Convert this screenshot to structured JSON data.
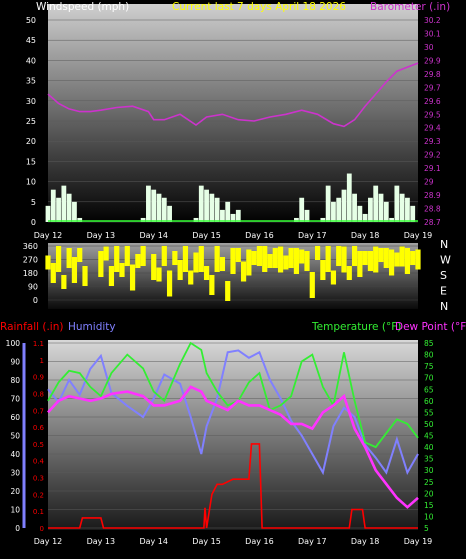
{
  "colors": {
    "white": "#ffffff",
    "wind": "#e6ffe6",
    "wind_line": "#33ff33",
    "barometer": "#cc33cc",
    "direction": "#ffff00",
    "rainfall": "#ff0000",
    "humidity": "#8080ff",
    "temperature": "#33ee33",
    "dew_point": "#ff33ff",
    "header_text": "#ffff00"
  },
  "chart_data": [
    {
      "type": "area",
      "title": "Current last 7 days April 18 2026",
      "left_label": "Windspeed (mph)",
      "right_label": "Barometer (.in)",
      "y_ticks": [
        "50",
        "45",
        "40",
        "35",
        "30",
        "25",
        "20",
        "15",
        "10",
        "5",
        "0"
      ],
      "right_ticks": [
        "30.2",
        "30.1",
        "30",
        "29.9",
        "29.8",
        "29.7",
        "29.6",
        "29.5",
        "29.4",
        "29.3",
        "29.2",
        "29.1",
        "29",
        "28.9",
        "28.8",
        "28.7"
      ],
      "x_ticks": [
        "Day 12",
        "Day 13",
        "Day 14",
        "Day 15",
        "Day 16",
        "Day 17",
        "Day 18",
        "Day 19"
      ],
      "ylim": [
        0,
        50
      ],
      "right_ylim": [
        28.7,
        30.2
      ],
      "series": [
        {
          "name": "Windspeed",
          "x": [
            12,
            12.1,
            12.2,
            12.3,
            12.4,
            12.5,
            12.6,
            12.7,
            12.8,
            12.9,
            13.0,
            13.1,
            13.2,
            13.3,
            13.4,
            13.5,
            13.6,
            13.7,
            13.8,
            13.9,
            14.0,
            14.1,
            14.2,
            14.3,
            14.4,
            14.5,
            14.6,
            14.7,
            14.8,
            14.9,
            15.0,
            15.1,
            15.2,
            15.3,
            15.4,
            15.5,
            15.6,
            15.7,
            15.8,
            15.9,
            16.0,
            16.1,
            16.2,
            16.3,
            16.4,
            16.5,
            16.6,
            16.7,
            16.8,
            16.9,
            17.0,
            17.1,
            17.2,
            17.3,
            17.4,
            17.5,
            17.6,
            17.7,
            17.8,
            17.9,
            18.0,
            18.1,
            18.2,
            18.3,
            18.4,
            18.5,
            18.6,
            18.7,
            18.8,
            18.9,
            19.0
          ],
          "values": [
            4,
            8,
            6,
            9,
            7,
            5,
            1,
            0,
            0,
            0,
            0,
            0,
            0,
            0,
            0,
            0,
            0,
            0,
            1,
            9,
            8,
            7,
            6,
            4,
            0,
            0,
            0,
            0,
            1,
            9,
            8,
            7,
            6,
            3,
            5,
            2,
            3,
            0,
            0,
            0,
            0,
            0,
            0,
            0,
            0,
            0,
            0,
            1,
            6,
            3,
            0,
            0,
            1,
            9,
            5,
            6,
            8,
            12,
            7,
            4,
            2,
            6,
            9,
            7,
            5,
            1,
            9,
            7,
            6,
            4,
            0
          ]
        },
        {
          "name": "Barometer",
          "x": [
            12,
            12.2,
            12.4,
            12.6,
            12.8,
            13.0,
            13.3,
            13.6,
            13.9,
            14.0,
            14.2,
            14.5,
            14.8,
            15.0,
            15.3,
            15.6,
            15.9,
            16.2,
            16.5,
            16.8,
            17.1,
            17.4,
            17.6,
            17.8,
            18.0,
            18.2,
            18.4,
            18.6,
            18.8,
            19.0
          ],
          "values": [
            29.65,
            29.58,
            29.54,
            29.52,
            29.52,
            29.53,
            29.55,
            29.56,
            29.52,
            29.46,
            29.46,
            29.5,
            29.42,
            29.48,
            29.5,
            29.46,
            29.45,
            29.48,
            29.5,
            29.53,
            29.5,
            29.43,
            29.41,
            29.46,
            29.56,
            29.65,
            29.74,
            29.82,
            29.85,
            29.88
          ]
        }
      ]
    },
    {
      "type": "scatter",
      "title": "",
      "y_ticks": [
        "360",
        "270",
        "180",
        "90",
        "0"
      ],
      "right_ticks": [
        "N",
        "W",
        "S",
        "E",
        "N"
      ],
      "ylim": [
        0,
        360
      ],
      "series": [
        {
          "name": "",
          "x": [
            12,
            12.1,
            12.2,
            12.3,
            12.4,
            12.5,
            12.6,
            12.7,
            13.0,
            13.1,
            13.2,
            13.3,
            13.4,
            13.5,
            13.6,
            13.7,
            13.8,
            14.0,
            14.1,
            14.2,
            14.3,
            14.4,
            14.5,
            14.6,
            14.7,
            14.8,
            14.9,
            15.0,
            15.1,
            15.2,
            15.3,
            15.4,
            15.5,
            15.6,
            15.7,
            15.8,
            15.9,
            16.0,
            16.1,
            16.2,
            16.3,
            16.4,
            16.5,
            16.6,
            16.7,
            16.8,
            16.9,
            17.0,
            17.1,
            17.2,
            17.3,
            17.4,
            17.5,
            17.6,
            17.7,
            17.8,
            17.9,
            18.0,
            18.1,
            18.2,
            18.3,
            18.4,
            18.5,
            18.6,
            18.7,
            18.8,
            18.9,
            19.0
          ],
          "values": [
            250,
            180,
            320,
            120,
            280,
            200,
            300,
            160,
            240,
            310,
            160,
            280,
            200,
            330,
            150,
            260,
            300,
            220,
            170,
            300,
            110,
            280,
            200,
            300,
            150,
            250,
            320,
            180,
            100,
            290,
            240,
            60,
            260,
            300,
            190,
            250,
            280,
            300,
            280,
            260,
            280,
            270,
            250,
            280,
            260,
            290,
            260,
            100,
            320,
            200,
            280,
            150,
            300,
            270,
            180,
            300,
            240,
            280,
            260,
            270,
            300,
            280,
            250,
            270,
            290,
            260,
            280,
            270
          ]
        }
      ]
    },
    {
      "type": "line",
      "title": "",
      "left_label": "Rainfall (.in)",
      "humidity_label": "Humidity",
      "temp_label": "Temperature (°F)",
      "dew_label": "Dew Point (°F)",
      "humidity_ticks": [
        "100",
        "90",
        "80",
        "70",
        "60",
        "50",
        "40",
        "30",
        "20",
        "10",
        "0"
      ],
      "rain_ticks": [
        "1.1",
        "1",
        "0.9",
        "0.8",
        "0.7",
        "0.6",
        "0.5",
        "0.4",
        "0.3",
        "0.2",
        "0.1",
        "0"
      ],
      "temp_ticks": [
        "85",
        "80",
        "75",
        "70",
        "65",
        "60",
        "55",
        "50",
        "45",
        "40",
        "35",
        "30",
        "25",
        "20",
        "15",
        "10",
        "5"
      ],
      "x_ticks": [
        "Day 12",
        "Day 13",
        "Day 14",
        "Day 15",
        "Day 16",
        "Day 17",
        "Day 18",
        "Day 19"
      ],
      "humidity_ylim": [
        0,
        100
      ],
      "rain_ylim": [
        0,
        1.1
      ],
      "temp_ylim": [
        5,
        85
      ],
      "series": [
        {
          "name": "Rainfall",
          "x": [
            12,
            12.6,
            12.65,
            13.0,
            13.05,
            13.7,
            14.5,
            14.95,
            14.97,
            15.0,
            15.1,
            15.2,
            15.3,
            15.5,
            15.8,
            15.85,
            16.0,
            16.05,
            17.7,
            17.75,
            17.95,
            18.0,
            18.05,
            18.8,
            19.0
          ],
          "values": [
            0,
            0,
            0.06,
            0.06,
            0,
            0,
            0,
            0,
            0.12,
            0,
            0.2,
            0.26,
            0.26,
            0.29,
            0.29,
            0.5,
            0.5,
            0,
            0,
            0.11,
            0.11,
            0,
            0,
            0,
            0
          ]
        },
        {
          "name": "Humidity",
          "x": [
            12,
            12.2,
            12.4,
            12.6,
            12.8,
            13.0,
            13.2,
            13.5,
            13.8,
            14.0,
            14.2,
            14.5,
            14.7,
            14.9,
            15.0,
            15.2,
            15.4,
            15.6,
            15.8,
            16.0,
            16.2,
            16.4,
            16.6,
            16.8,
            17.0,
            17.2,
            17.4,
            17.6,
            17.8,
            18.0,
            18.2,
            18.4,
            18.6,
            18.8,
            19.0
          ],
          "values": [
            75,
            68,
            80,
            72,
            86,
            93,
            73,
            66,
            60,
            70,
            83,
            78,
            60,
            40,
            55,
            70,
            95,
            96,
            92,
            95,
            80,
            70,
            58,
            50,
            40,
            30,
            55,
            65,
            60,
            45,
            38,
            30,
            48,
            30,
            40
          ]
        },
        {
          "name": "Temperature",
          "x": [
            12,
            12.2,
            12.4,
            12.6,
            12.8,
            13.0,
            13.2,
            13.5,
            13.8,
            14.0,
            14.2,
            14.5,
            14.7,
            14.9,
            15.0,
            15.2,
            15.4,
            15.6,
            15.8,
            16.0,
            16.2,
            16.4,
            16.6,
            16.8,
            17.0,
            17.2,
            17.4,
            17.6,
            17.8,
            18.0,
            18.2,
            18.4,
            18.6,
            18.8,
            19.0
          ],
          "values": [
            60,
            68,
            73,
            72,
            66,
            62,
            72,
            80,
            74,
            64,
            60,
            76,
            85,
            82,
            72,
            64,
            58,
            60,
            68,
            72,
            56,
            58,
            62,
            77,
            80,
            66,
            58,
            81,
            60,
            42,
            40,
            46,
            52,
            50,
            44
          ]
        },
        {
          "name": "Dew Point",
          "x": [
            12,
            12.2,
            12.4,
            12.6,
            12.8,
            13.0,
            13.2,
            13.5,
            13.8,
            14.0,
            14.2,
            14.5,
            14.7,
            14.9,
            15.0,
            15.2,
            15.4,
            15.6,
            15.8,
            16.0,
            16.2,
            16.4,
            16.6,
            16.8,
            17.0,
            17.2,
            17.4,
            17.6,
            17.8,
            18.0,
            18.2,
            18.4,
            18.6,
            18.8,
            19.0
          ],
          "values": [
            55,
            60,
            62,
            61,
            60,
            61,
            63,
            64,
            62,
            58,
            58,
            60,
            66,
            64,
            60,
            58,
            56,
            60,
            58,
            58,
            56,
            54,
            50,
            50,
            48,
            55,
            58,
            62,
            48,
            40,
            30,
            24,
            18,
            14,
            18
          ]
        }
      ]
    }
  ]
}
